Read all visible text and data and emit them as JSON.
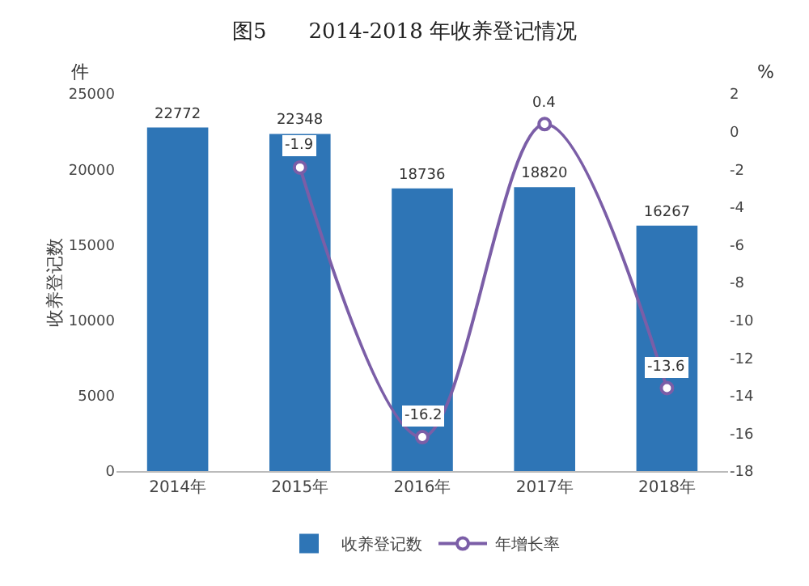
{
  "chart_data": {
    "type": "bar",
    "title": "图5　　2014-2018 年收养登记情况",
    "ylabel": "收养登记数",
    "annotations": [
      "件",
      "%"
    ],
    "categories": [
      "2014年",
      "2015年",
      "2016年",
      "2017年",
      "2018年"
    ],
    "series": [
      {
        "name": "收养登记数",
        "color": "#2e75b6",
        "values": [
          22772,
          22348,
          18736,
          18820,
          16267
        ]
      },
      {
        "name": "年增长率",
        "type": "line",
        "axis": "y2",
        "color": "#7b5ea7",
        "values": [
          null,
          -1.9,
          -16.2,
          0.4,
          -13.6
        ]
      }
    ],
    "ylim": [
      0,
      25000
    ],
    "yticks": [
      0,
      5000,
      10000,
      15000,
      20000,
      25000
    ],
    "y2lim": [
      -18,
      2
    ],
    "y2ticks": [
      2,
      0,
      -2,
      -4,
      -6,
      -8,
      -10,
      -12,
      -14,
      -16,
      -18
    ],
    "data_labels": true,
    "legend": "bottom",
    "marker": "circle",
    "line_style": "solid"
  }
}
